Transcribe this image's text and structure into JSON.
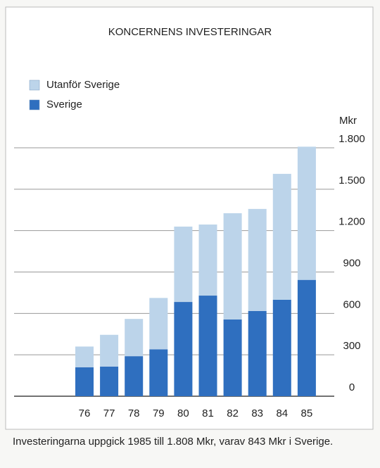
{
  "chart_data": {
    "type": "stacked-bar",
    "title": "KONCERNENS INVESTERINGAR",
    "y_axis_label": "Mkr",
    "categories": [
      "76",
      "77",
      "78",
      "79",
      "80",
      "81",
      "82",
      "83",
      "84",
      "85"
    ],
    "series": [
      {
        "name": "Sverige",
        "color": "#2f6fbf",
        "values": [
          210,
          215,
          290,
          340,
          683,
          729,
          556,
          617,
          699,
          843
        ]
      },
      {
        "name": "Utanför Sverige",
        "color": "#bcd4ea",
        "values": [
          150,
          230,
          270,
          372,
          546,
          515,
          770,
          740,
          912,
          965
        ]
      }
    ],
    "ylim": [
      0,
      1800
    ],
    "yticks": [
      0,
      300,
      600,
      900,
      {
        "value": 1200,
        "label": "1.200"
      },
      {
        "value": 1500,
        "label": "1.500"
      },
      {
        "value": 1800,
        "label": "1.800"
      }
    ],
    "grid": true,
    "caption": "Investeringarna uppgick 1985 till 1.808 Mkr, varav 843 Mkr i Sverige."
  }
}
